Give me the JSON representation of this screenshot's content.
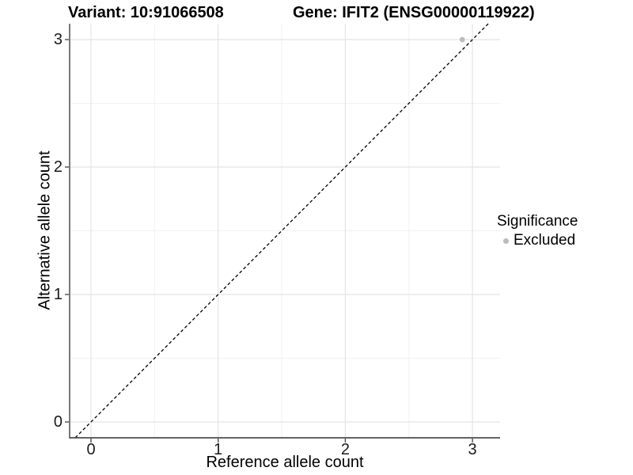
{
  "titles": {
    "variant": "Variant: 10:91066508",
    "gene": "Gene: IFIT2 (ENSG00000119922)"
  },
  "axes": {
    "x_label": "Reference allele count",
    "y_label": "Alternative allele count"
  },
  "legend": {
    "title": "Significance",
    "items": [
      {
        "label": "Excluded",
        "color": "#bcbcbc"
      }
    ]
  },
  "colors": {
    "background": "#ffffff",
    "grid_major": "#e4e4e4",
    "grid_minor": "#f2f2f2",
    "axis_line": "#4d4d4d",
    "tick_mark": "#4d4d4d",
    "identity_line": "#000000",
    "point_excluded": "#bcbcbc",
    "text": "#000000"
  },
  "chart_data": {
    "type": "scatter",
    "title": "Variant: 10:91066508 — Gene: IFIT2 (ENSG00000119922)",
    "xlabel": "Reference allele count",
    "ylabel": "Alternative allele count",
    "xlim": [
      -0.17,
      3.22
    ],
    "ylim": [
      -0.12,
      3.12
    ],
    "x_ticks": [
      0,
      1,
      2,
      3
    ],
    "y_ticks": [
      0,
      1,
      2,
      3
    ],
    "minor_ticks_x": [
      0.5,
      1.5,
      2.5
    ],
    "minor_ticks_y": [
      0.5,
      1.5,
      2.5
    ],
    "grid": true,
    "legend_position": "right",
    "series": [
      {
        "name": "Excluded",
        "color": "#bcbcbc",
        "points": [
          {
            "x": 2.92,
            "y": 3.0
          }
        ]
      }
    ],
    "reference_line": {
      "type": "identity",
      "equation": "y = x",
      "style": "dashed",
      "color": "#000000"
    }
  }
}
